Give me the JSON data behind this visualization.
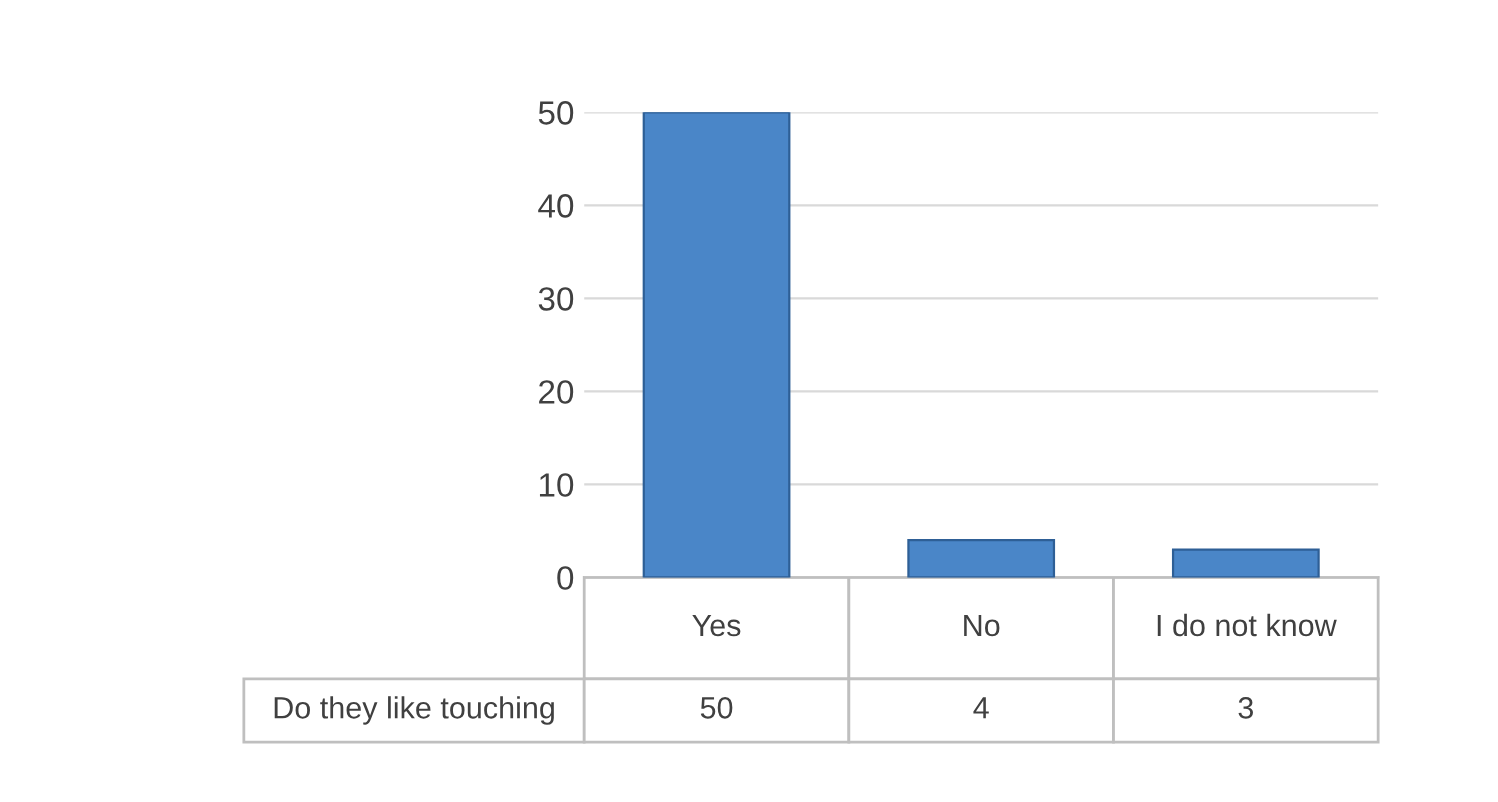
{
  "chart_data": {
    "type": "bar",
    "categories": [
      "Yes",
      "No",
      "I do not know"
    ],
    "series": [
      {
        "name": "Do they like touching",
        "color": "#4a86c8",
        "values": [
          50,
          4,
          3
        ]
      }
    ],
    "ylim": [
      0,
      50
    ],
    "yticks": [
      0,
      10,
      20,
      30,
      40,
      50
    ],
    "grid": "y",
    "data_labels": true
  }
}
